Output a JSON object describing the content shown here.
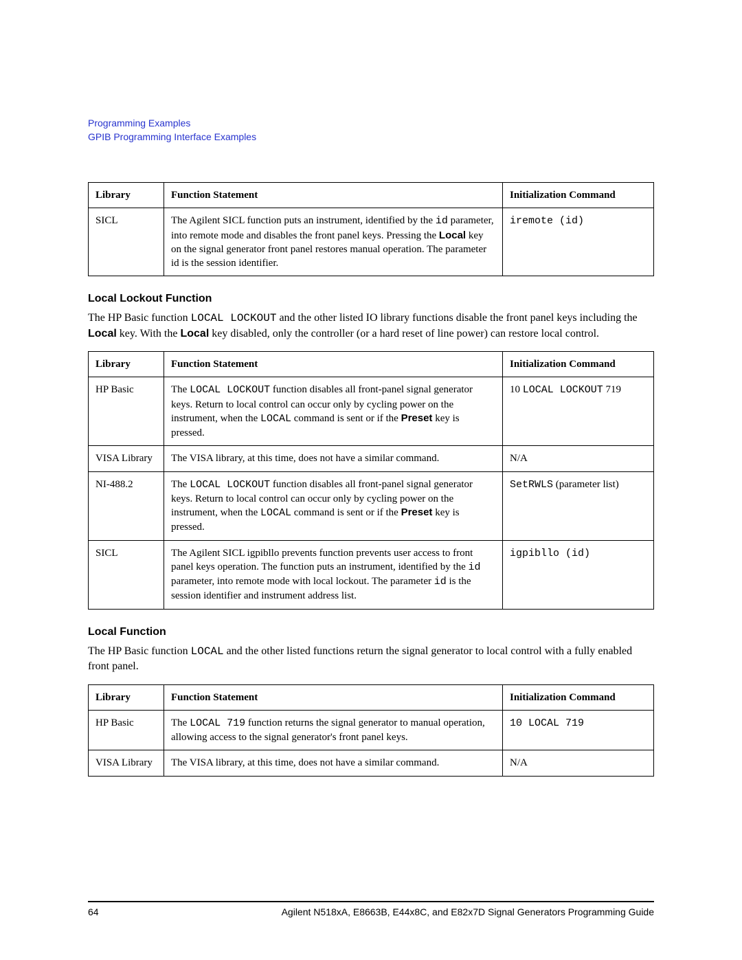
{
  "colors": {
    "link": "#2733ce",
    "text": "#000000",
    "border": "#000000",
    "background": "#ffffff"
  },
  "fonts": {
    "body": "Georgia/serif",
    "heading_sans": "Arial/sans-serif",
    "mono": "Courier New/monospace"
  },
  "header": {
    "line1": "Programming Examples",
    "line2": "GPIB Programming Interface Examples"
  },
  "table1": {
    "columns": [
      "Library",
      "Function Statement",
      "Initialization Command"
    ],
    "rows": [
      {
        "library": "SICL",
        "statement_html": "The Agilent SICL function puts an instrument, identified by the <span class='mono'>id</span> parameter, into remote mode and disables the front panel keys. Pressing the <b class='sans'>Local</b> key on the signal generator front panel restores manual operation. The parameter id is the session identifier.",
        "command_html": "<span class='mono'>iremote (id)</span>"
      }
    ]
  },
  "section_lockout": {
    "title": "Local Lockout Function",
    "para_html": "The HP Basic function <span class='mono'>LOCAL LOCKOUT</span> and the other listed IO library functions disable the front panel keys including the <b class='sans'>Local</b> key. With the <b class='sans'>Local</b> key disabled, only the controller (or a hard reset of line power) can restore local control."
  },
  "table2": {
    "columns": [
      "Library",
      "Function Statement",
      "Initialization Command"
    ],
    "rows": [
      {
        "library": "HP Basic",
        "statement_html": "The <span class='mono'>LOCAL LOCKOUT</span> function disables all front-panel signal generator keys. Return to local control can occur only by cycling power on the instrument, when the <span class='mono'>LOCAL</span> command is sent or if the <b class='sans'>Preset</b> key is pressed.",
        "command_html": "10 <span class='mono'>LOCAL LOCKOUT</span> 719"
      },
      {
        "library": "VISA Library",
        "statement_html": "The VISA library, at this time, does not have a similar command.",
        "command_html": "N/A"
      },
      {
        "library": "NI-488.2",
        "statement_html": "The <span class='mono'>LOCAL LOCKOUT</span> function disables all front-panel signal generator keys. Return to local control can occur only by cycling power on the instrument, when the <span class='mono'>LOCAL</span> command is sent or if the <b class='sans'>Preset</b> key is pressed.",
        "command_html": "<span class='mono'>SetRWLS</span> (parameter list)"
      },
      {
        "library": "SICL",
        "statement_html": "The Agilent SICL igpibllo prevents function prevents user access to front panel keys operation. The function puts an instrument, identified by the <span class='mono'>id</span> parameter, into remote mode with local lockout. The parameter <span class='mono'>id</span> is the session identifier and instrument address list.",
        "command_html": "<span class='mono'>igpibllo (id)</span>"
      }
    ]
  },
  "section_local": {
    "title": "Local Function",
    "para_html": "The HP Basic function <span class='mono'>LOCAL</span> and the other listed functions return the signal generator to local control with a fully enabled front panel."
  },
  "table3": {
    "columns": [
      "Library",
      "Function Statement",
      "Initialization Command"
    ],
    "rows": [
      {
        "library": "HP Basic",
        "statement_html": "The <span class='mono'>LOCAL 719</span> function returns the signal generator to manual operation, allowing access to the signal generator's front panel keys.",
        "command_html": "<span class='mono'>10 LOCAL 719</span>"
      },
      {
        "library": "VISA Library",
        "statement_html": "The VISA library, at this time, does not have a similar command.",
        "command_html": "N/A"
      }
    ]
  },
  "footer": {
    "page_number": "64",
    "book_title": "Agilent N518xA, E8663B, E44x8C, and E82x7D Signal Generators Programming Guide"
  }
}
